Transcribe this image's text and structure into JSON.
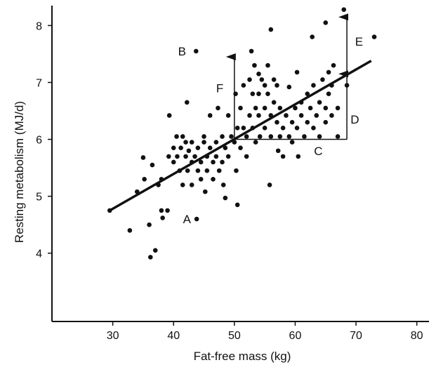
{
  "chart_data": {
    "type": "scatter",
    "title": "",
    "xlabel": "Fat-free mass (kg)",
    "ylabel": "Resting metabolism (MJ/d)",
    "xlim": [
      20,
      82
    ],
    "ylim": [
      2.8,
      8.35
    ],
    "xticks": [
      30,
      40,
      50,
      60,
      70,
      80
    ],
    "yticks": [
      4,
      5,
      6,
      7,
      8
    ],
    "grid": false,
    "legend": "none",
    "colors": {
      "points": "#111111",
      "axes": "#111111",
      "line": "#111111"
    },
    "regression_line": {
      "x": [
        29.5,
        72.5
      ],
      "y": [
        4.75,
        7.38
      ]
    },
    "points": [
      {
        "x": 29.5,
        "y": 4.75
      },
      {
        "x": 32.8,
        "y": 4.4
      },
      {
        "x": 34.0,
        "y": 5.08
      },
      {
        "x": 35.0,
        "y": 5.68
      },
      {
        "x": 35.2,
        "y": 5.3
      },
      {
        "x": 36.0,
        "y": 4.5
      },
      {
        "x": 36.2,
        "y": 3.93
      },
      {
        "x": 36.5,
        "y": 5.55
      },
      {
        "x": 37.0,
        "y": 4.05
      },
      {
        "x": 37.5,
        "y": 5.2
      },
      {
        "x": 38.0,
        "y": 4.75
      },
      {
        "x": 38.0,
        "y": 5.3
      },
      {
        "x": 38.2,
        "y": 4.62
      },
      {
        "x": 39.0,
        "y": 4.75
      },
      {
        "x": 39.2,
        "y": 5.7
      },
      {
        "x": 39.3,
        "y": 6.42
      },
      {
        "x": 40.0,
        "y": 5.85
      },
      {
        "x": 40.0,
        "y": 5.6
      },
      {
        "x": 40.5,
        "y": 6.05
      },
      {
        "x": 40.6,
        "y": 5.7
      },
      {
        "x": 41.0,
        "y": 5.45
      },
      {
        "x": 41.2,
        "y": 5.85
      },
      {
        "x": 41.5,
        "y": 6.05
      },
      {
        "x": 41.5,
        "y": 5.2
      },
      {
        "x": 42.0,
        "y": 5.7
      },
      {
        "x": 42.0,
        "y": 5.95
      },
      {
        "x": 42.2,
        "y": 6.65
      },
      {
        "x": 42.3,
        "y": 5.45
      },
      {
        "x": 42.5,
        "y": 5.8
      },
      {
        "x": 43.0,
        "y": 5.2
      },
      {
        "x": 43.0,
        "y": 5.6
      },
      {
        "x": 43.0,
        "y": 5.95
      },
      {
        "x": 43.5,
        "y": 5.7
      },
      {
        "x": 43.7,
        "y": 7.55
      },
      {
        "x": 43.8,
        "y": 4.6
      },
      {
        "x": 44.0,
        "y": 5.85
      },
      {
        "x": 44.0,
        "y": 5.45
      },
      {
        "x": 44.5,
        "y": 5.6
      },
      {
        "x": 44.5,
        "y": 5.3
      },
      {
        "x": 45.0,
        "y": 5.95
      },
      {
        "x": 45.0,
        "y": 6.05
      },
      {
        "x": 45.2,
        "y": 5.08
      },
      {
        "x": 45.5,
        "y": 5.7
      },
      {
        "x": 45.5,
        "y": 5.45
      },
      {
        "x": 46.0,
        "y": 5.85
      },
      {
        "x": 46.0,
        "y": 6.42
      },
      {
        "x": 46.5,
        "y": 5.6
      },
      {
        "x": 46.5,
        "y": 5.3
      },
      {
        "x": 47.0,
        "y": 5.95
      },
      {
        "x": 47.0,
        "y": 5.7
      },
      {
        "x": 47.3,
        "y": 6.55
      },
      {
        "x": 47.5,
        "y": 5.45
      },
      {
        "x": 48.0,
        "y": 6.05
      },
      {
        "x": 48.0,
        "y": 5.6
      },
      {
        "x": 48.2,
        "y": 5.2
      },
      {
        "x": 48.5,
        "y": 4.97
      },
      {
        "x": 48.5,
        "y": 5.85
      },
      {
        "x": 49.0,
        "y": 5.7
      },
      {
        "x": 49.0,
        "y": 6.42
      },
      {
        "x": 49.5,
        "y": 6.05
      },
      {
        "x": 50.0,
        "y": 5.95
      },
      {
        "x": 50.2,
        "y": 6.8
      },
      {
        "x": 50.3,
        "y": 5.45
      },
      {
        "x": 50.5,
        "y": 6.2
      },
      {
        "x": 50.5,
        "y": 4.85
      },
      {
        "x": 51.0,
        "y": 5.85
      },
      {
        "x": 51.0,
        "y": 6.55
      },
      {
        "x": 51.5,
        "y": 6.95
      },
      {
        "x": 51.5,
        "y": 6.2
      },
      {
        "x": 52.0,
        "y": 6.05
      },
      {
        "x": 52.0,
        "y": 5.7
      },
      {
        "x": 52.5,
        "y": 7.05
      },
      {
        "x": 52.5,
        "y": 6.42
      },
      {
        "x": 52.8,
        "y": 7.55
      },
      {
        "x": 53.0,
        "y": 6.8
      },
      {
        "x": 53.0,
        "y": 6.2
      },
      {
        "x": 53.3,
        "y": 7.3
      },
      {
        "x": 53.5,
        "y": 6.55
      },
      {
        "x": 53.5,
        "y": 5.95
      },
      {
        "x": 54.0,
        "y": 7.15
      },
      {
        "x": 54.0,
        "y": 6.8
      },
      {
        "x": 54.0,
        "y": 6.42
      },
      {
        "x": 54.2,
        "y": 6.05
      },
      {
        "x": 54.5,
        "y": 7.05
      },
      {
        "x": 55.0,
        "y": 6.95
      },
      {
        "x": 55.0,
        "y": 6.55
      },
      {
        "x": 55.0,
        "y": 6.2
      },
      {
        "x": 55.5,
        "y": 7.3
      },
      {
        "x": 55.5,
        "y": 6.8
      },
      {
        "x": 55.8,
        "y": 5.2
      },
      {
        "x": 56.0,
        "y": 7.93
      },
      {
        "x": 56.0,
        "y": 6.42
      },
      {
        "x": 56.0,
        "y": 6.05
      },
      {
        "x": 56.5,
        "y": 7.05
      },
      {
        "x": 56.5,
        "y": 6.65
      },
      {
        "x": 57.0,
        "y": 6.95
      },
      {
        "x": 57.0,
        "y": 6.3
      },
      {
        "x": 57.2,
        "y": 5.8
      },
      {
        "x": 57.5,
        "y": 6.55
      },
      {
        "x": 57.5,
        "y": 6.05
      },
      {
        "x": 58.0,
        "y": 5.7
      },
      {
        "x": 58.0,
        "y": 6.2
      },
      {
        "x": 58.5,
        "y": 6.42
      },
      {
        "x": 59.0,
        "y": 6.92
      },
      {
        "x": 59.0,
        "y": 6.05
      },
      {
        "x": 59.5,
        "y": 5.95
      },
      {
        "x": 59.5,
        "y": 6.3
      },
      {
        "x": 60.0,
        "y": 6.55
      },
      {
        "x": 60.3,
        "y": 7.18
      },
      {
        "x": 60.3,
        "y": 6.2
      },
      {
        "x": 60.5,
        "y": 5.7
      },
      {
        "x": 61.0,
        "y": 6.42
      },
      {
        "x": 61.0,
        "y": 6.65
      },
      {
        "x": 61.5,
        "y": 6.05
      },
      {
        "x": 62.0,
        "y": 6.3
      },
      {
        "x": 62.0,
        "y": 6.8
      },
      {
        "x": 62.5,
        "y": 6.55
      },
      {
        "x": 62.8,
        "y": 7.8
      },
      {
        "x": 63.0,
        "y": 6.2
      },
      {
        "x": 63.0,
        "y": 6.95
      },
      {
        "x": 63.5,
        "y": 6.42
      },
      {
        "x": 64.0,
        "y": 6.65
      },
      {
        "x": 64.0,
        "y": 6.05
      },
      {
        "x": 64.5,
        "y": 7.05
      },
      {
        "x": 65.0,
        "y": 8.05
      },
      {
        "x": 65.0,
        "y": 6.55
      },
      {
        "x": 65.0,
        "y": 6.3
      },
      {
        "x": 65.5,
        "y": 6.8
      },
      {
        "x": 65.5,
        "y": 7.18
      },
      {
        "x": 66.0,
        "y": 6.42
      },
      {
        "x": 66.0,
        "y": 6.95
      },
      {
        "x": 66.3,
        "y": 7.3
      },
      {
        "x": 67.0,
        "y": 6.55
      },
      {
        "x": 67.0,
        "y": 6.05
      },
      {
        "x": 68.0,
        "y": 8.28
      },
      {
        "x": 68.5,
        "y": 6.95
      },
      {
        "x": 73.0,
        "y": 7.8
      }
    ],
    "annotations": [
      {
        "text": "A",
        "x": 42.2,
        "y": 4.6
      },
      {
        "text": "B",
        "x": 41.4,
        "y": 7.55
      },
      {
        "text": "C",
        "x": 63.8,
        "y": 5.8
      },
      {
        "text": "D",
        "x": 69.8,
        "y": 6.35
      },
      {
        "text": "E",
        "x": 70.5,
        "y": 7.72
      },
      {
        "text": "F",
        "x": 47.6,
        "y": 6.9
      }
    ],
    "construction_lines": [
      {
        "from": [
          50.0,
          6.0
        ],
        "to": [
          68.5,
          6.0
        ],
        "arrow": false
      },
      {
        "from": [
          50.0,
          6.0
        ],
        "to": [
          50.0,
          7.45
        ],
        "arrow": true
      },
      {
        "from": [
          68.5,
          6.0
        ],
        "to": [
          68.5,
          7.15
        ],
        "arrow": true
      },
      {
        "from": [
          68.5,
          7.15
        ],
        "to": [
          68.5,
          8.15
        ],
        "arrow": true
      }
    ]
  }
}
